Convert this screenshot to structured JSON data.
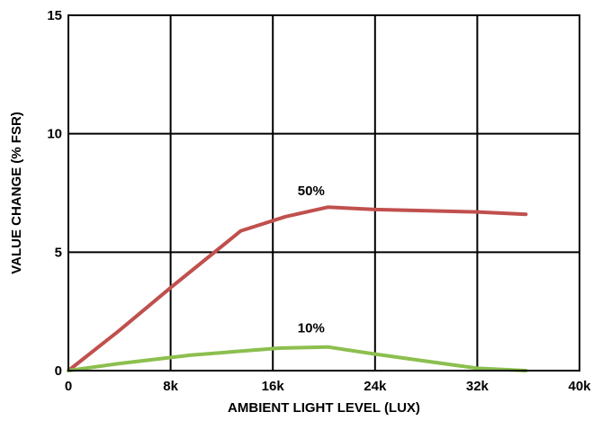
{
  "chart_data": {
    "type": "line",
    "xlabel": "AMBIENT LIGHT LEVEL (LUX)",
    "ylabel": "VALUE CHANGE (% FSR)",
    "xlim": [
      0,
      40000
    ],
    "ylim": [
      0,
      15
    ],
    "x_ticks": [
      {
        "value": 0,
        "label": "0"
      },
      {
        "value": 8000,
        "label": "8k"
      },
      {
        "value": 16000,
        "label": "16k"
      },
      {
        "value": 24000,
        "label": "24k"
      },
      {
        "value": 32000,
        "label": "32k"
      },
      {
        "value": 40000,
        "label": "40k"
      }
    ],
    "y_ticks": [
      {
        "value": 0,
        "label": "0"
      },
      {
        "value": 5,
        "label": "5"
      },
      {
        "value": 10,
        "label": "10"
      },
      {
        "value": 15,
        "label": "15"
      }
    ],
    "grid": true,
    "series": [
      {
        "name": "50%",
        "color": "#c0504d",
        "x": [
          0,
          4000,
          8000,
          13500,
          17000,
          20300,
          24000,
          28000,
          32000,
          35800
        ],
        "y": [
          0.0,
          1.7,
          3.5,
          5.9,
          6.5,
          6.9,
          6.8,
          6.75,
          6.7,
          6.6
        ],
        "label_at": {
          "x": 19000,
          "y": 7.6
        }
      },
      {
        "name": "10%",
        "color": "#8cbf4e",
        "x": [
          0,
          4000,
          9500,
          13000,
          16500,
          20300,
          24000,
          28000,
          32000,
          35800
        ],
        "y": [
          0.0,
          0.3,
          0.65,
          0.8,
          0.95,
          1.0,
          0.7,
          0.4,
          0.1,
          0.0
        ],
        "label_at": {
          "x": 19000,
          "y": 1.8
        }
      }
    ]
  }
}
